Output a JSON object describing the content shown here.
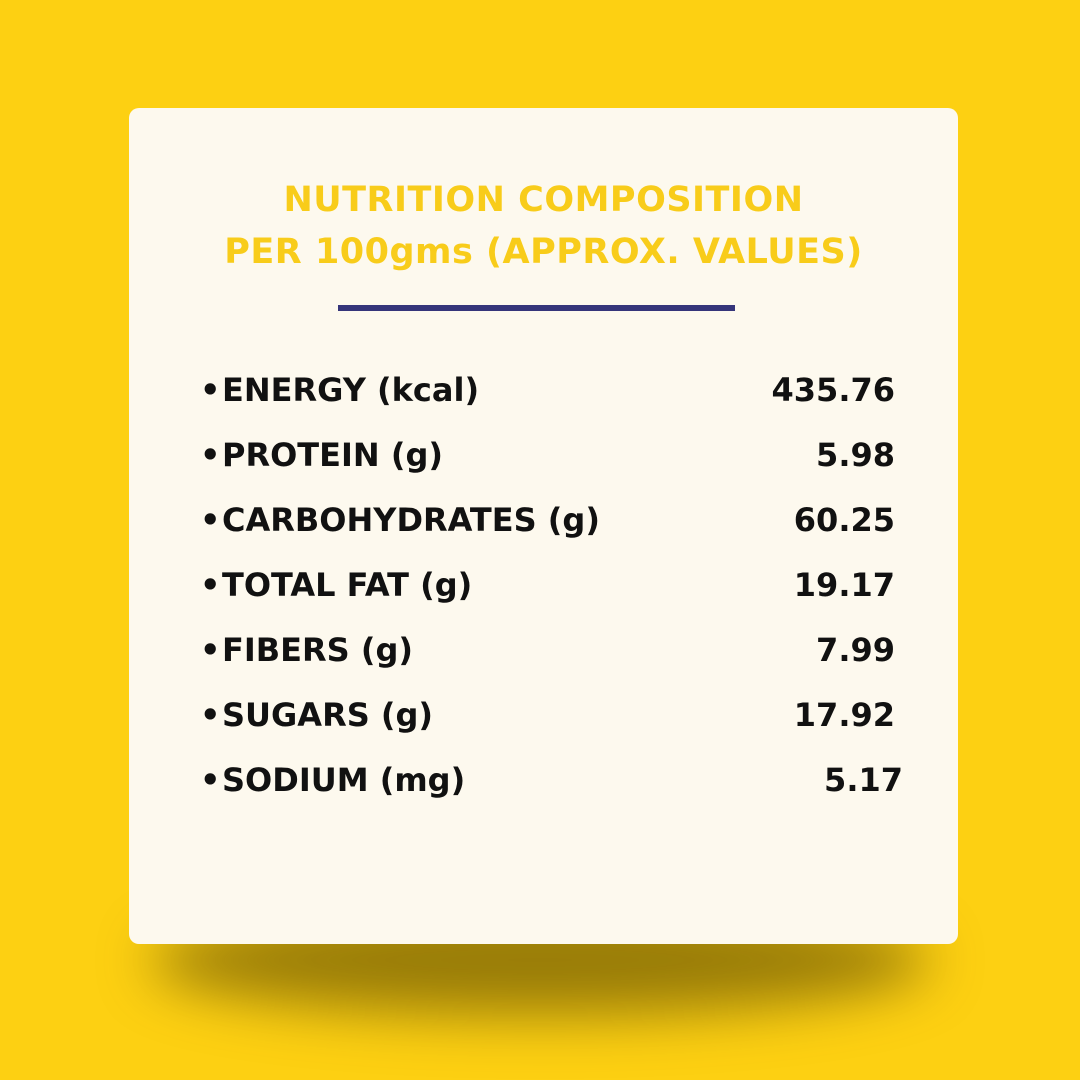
{
  "colors": {
    "background": "#fdd012",
    "card": "#fdf9ee",
    "heading": "#f8cc1a",
    "divider": "#35357a",
    "text": "#111111"
  },
  "heading": {
    "line1": "NUTRITION COMPOSITION",
    "line2": "PER 100gms (APPROX. VALUES)"
  },
  "bullet": "•",
  "nutrients": [
    {
      "label": "ENERGY (kcal)",
      "value": "435.76"
    },
    {
      "label": "PROTEIN (g)",
      "value": "5.98"
    },
    {
      "label": "CARBOHYDRATES (g)",
      "value": "60.25"
    },
    {
      "label": "TOTAL FAT (g)",
      "value": "19.17"
    },
    {
      "label": "FIBERS (g)",
      "value": "7.99"
    },
    {
      "label": "SUGARS (g)",
      "value": "17.92"
    },
    {
      "label": "SODIUM (mg)",
      "value": "5.17"
    }
  ]
}
